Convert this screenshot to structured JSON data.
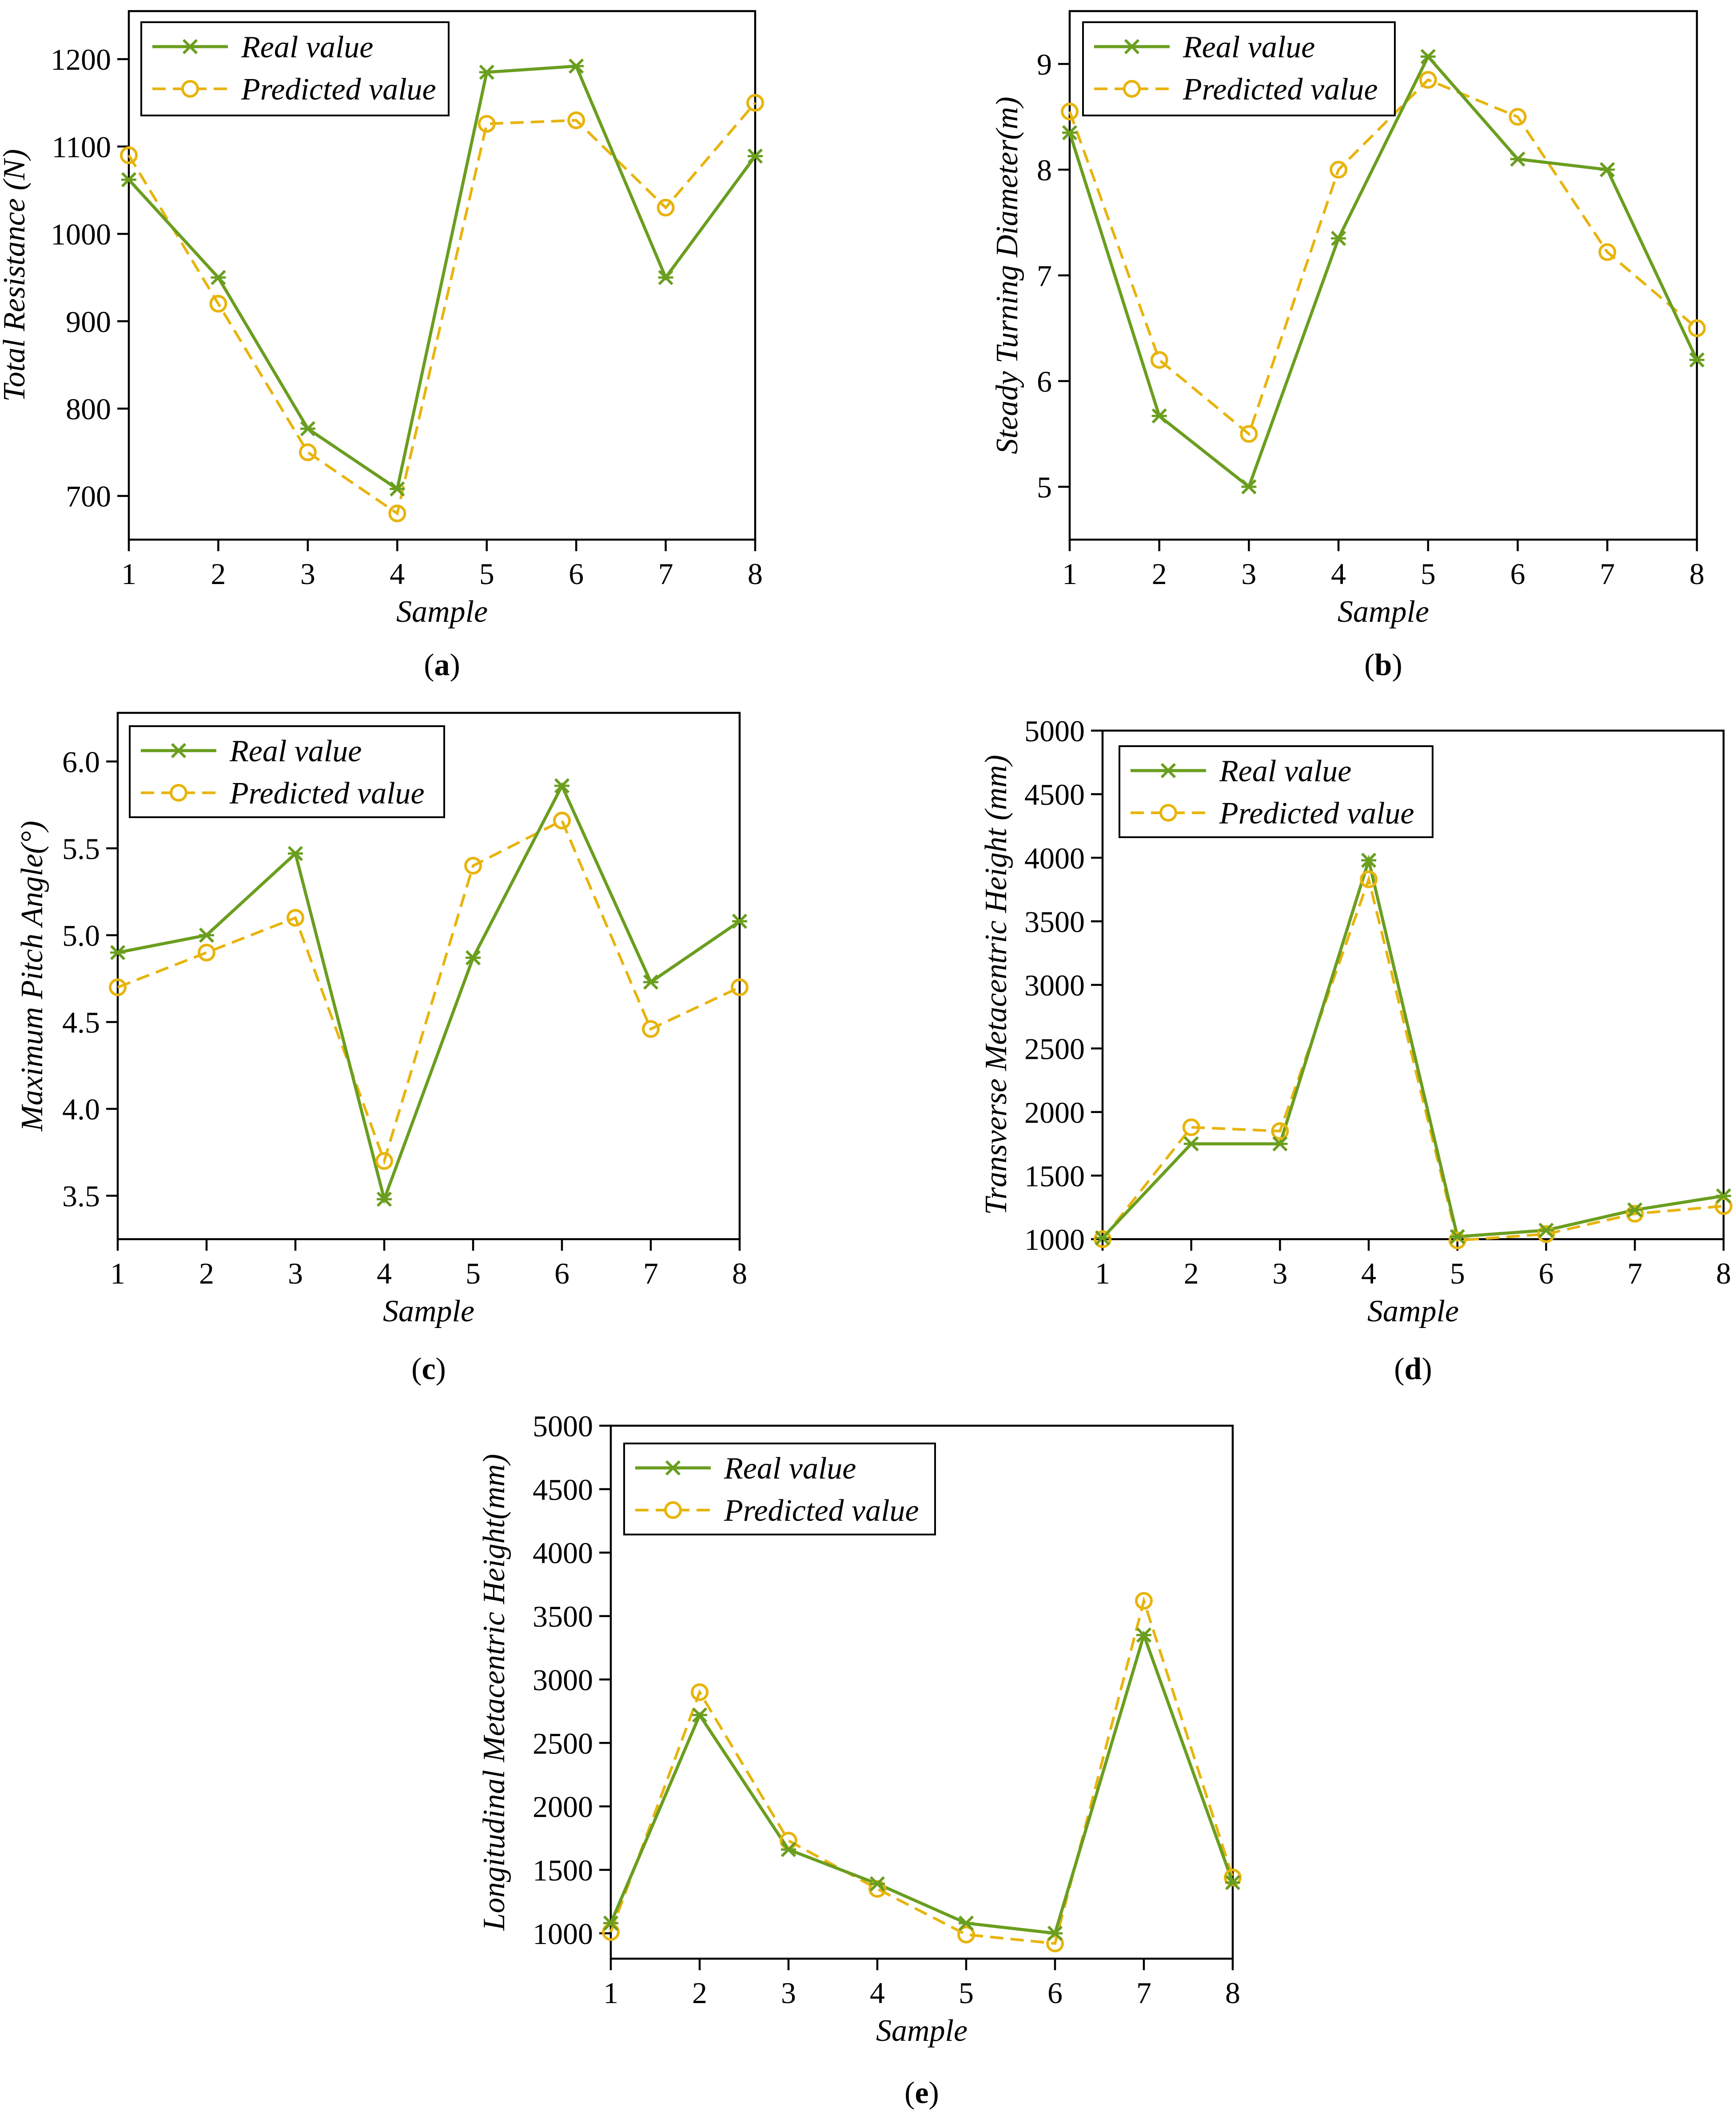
{
  "colors": {
    "real": "#6a9e1f",
    "predicted": "#e8b40c",
    "axis": "#000000"
  },
  "chart_data": [
    {
      "panel": "a",
      "type": "line",
      "xlabel": "Sample",
      "ylabel": "Total Resistance (N)",
      "x": [
        1,
        2,
        3,
        4,
        5,
        6,
        7,
        8
      ],
      "xticks": [
        "1",
        "2",
        "3",
        "4",
        "5",
        "6",
        "7",
        "8"
      ],
      "xlim": [
        1,
        8
      ],
      "ylim": [
        650,
        1255
      ],
      "yticks": [
        700,
        800,
        900,
        1000,
        1100,
        1200
      ],
      "legend_position": "top-left",
      "series": [
        {
          "name": "Real value",
          "values": [
            1062,
            950,
            777,
            708,
            1185,
            1192,
            950,
            1089
          ]
        },
        {
          "name": "Predicted value",
          "values": [
            1090,
            920,
            750,
            680,
            1126,
            1130,
            1030,
            1150
          ]
        }
      ]
    },
    {
      "panel": "b",
      "type": "line",
      "xlabel": "Sample",
      "ylabel": "Steady Turning Diameter(m)",
      "x": [
        1,
        2,
        3,
        4,
        5,
        6,
        7,
        8
      ],
      "xticks": [
        "1",
        "2",
        "3",
        "4",
        "5",
        "6",
        "7",
        "8"
      ],
      "xlim": [
        1,
        8
      ],
      "ylim": [
        4.5,
        9.5
      ],
      "yticks": [
        5,
        6,
        7,
        8,
        9
      ],
      "legend_position": "top-left",
      "series": [
        {
          "name": "Real value",
          "values": [
            8.35,
            5.67,
            5.0,
            7.35,
            9.07,
            8.1,
            8.0,
            6.2
          ]
        },
        {
          "name": "Predicted value",
          "values": [
            8.55,
            6.2,
            5.5,
            8.0,
            8.85,
            8.5,
            7.22,
            6.5
          ]
        }
      ]
    },
    {
      "panel": "c",
      "type": "line",
      "xlabel": "Sample",
      "ylabel": "Maximum Pitch Angle(°)",
      "x": [
        1,
        2,
        3,
        4,
        5,
        6,
        7,
        8
      ],
      "xticks": [
        "1",
        "2",
        "3",
        "4",
        "5",
        "6",
        "7",
        "8"
      ],
      "xlim": [
        1,
        8
      ],
      "ylim": [
        3.25,
        6.28
      ],
      "yticks": [
        3.5,
        4.0,
        4.5,
        5.0,
        5.5,
        6.0
      ],
      "yticklabels": [
        "3.5",
        "4.0",
        "4.5",
        "5.0",
        "5.5",
        "6.0"
      ],
      "legend_position": "top-left",
      "series": [
        {
          "name": "Real value",
          "values": [
            4.9,
            5.0,
            5.47,
            3.48,
            4.87,
            5.86,
            4.73,
            5.08
          ]
        },
        {
          "name": "Predicted value",
          "values": [
            4.7,
            4.9,
            5.1,
            3.7,
            5.4,
            5.66,
            4.46,
            4.7
          ]
        }
      ]
    },
    {
      "panel": "d",
      "type": "line",
      "xlabel": "Sample",
      "ylabel": "Transverse Metacentric Height (mm)",
      "x": [
        1,
        2,
        3,
        4,
        5,
        6,
        7,
        8
      ],
      "xticks": [
        "1",
        "2",
        "3",
        "4",
        "5",
        "6",
        "7",
        "8"
      ],
      "xlim": [
        1,
        8
      ],
      "ylim": [
        1000,
        5000
      ],
      "yticks": [
        1000,
        1500,
        2000,
        2500,
        3000,
        3500,
        4000,
        4500,
        5000
      ],
      "legend_position": "top-left",
      "series": [
        {
          "name": "Real value",
          "values": [
            1010,
            1750,
            1750,
            3980,
            1020,
            1070,
            1230,
            1340
          ]
        },
        {
          "name": "Predicted value",
          "values": [
            1000,
            1880,
            1850,
            3830,
            990,
            1040,
            1200,
            1260
          ]
        }
      ]
    },
    {
      "panel": "e",
      "type": "line",
      "xlabel": "Sample",
      "ylabel": "Longitudinal Metacentric Height(mm)",
      "x": [
        1,
        2,
        3,
        4,
        5,
        6,
        7,
        8
      ],
      "xticks": [
        "1",
        "2",
        "3",
        "4",
        "5",
        "6",
        "7",
        "8"
      ],
      "xlim": [
        1,
        8
      ],
      "ylim": [
        800,
        5000
      ],
      "yticks": [
        1000,
        1500,
        2000,
        2500,
        3000,
        3500,
        4000,
        4500,
        5000
      ],
      "legend_position": "top-left",
      "series": [
        {
          "name": "Real value",
          "values": [
            1080,
            2720,
            1660,
            1390,
            1080,
            1000,
            3350,
            1400
          ]
        },
        {
          "name": "Predicted value",
          "values": [
            1010,
            2900,
            1730,
            1350,
            990,
            920,
            3620,
            1440
          ]
        }
      ]
    }
  ]
}
